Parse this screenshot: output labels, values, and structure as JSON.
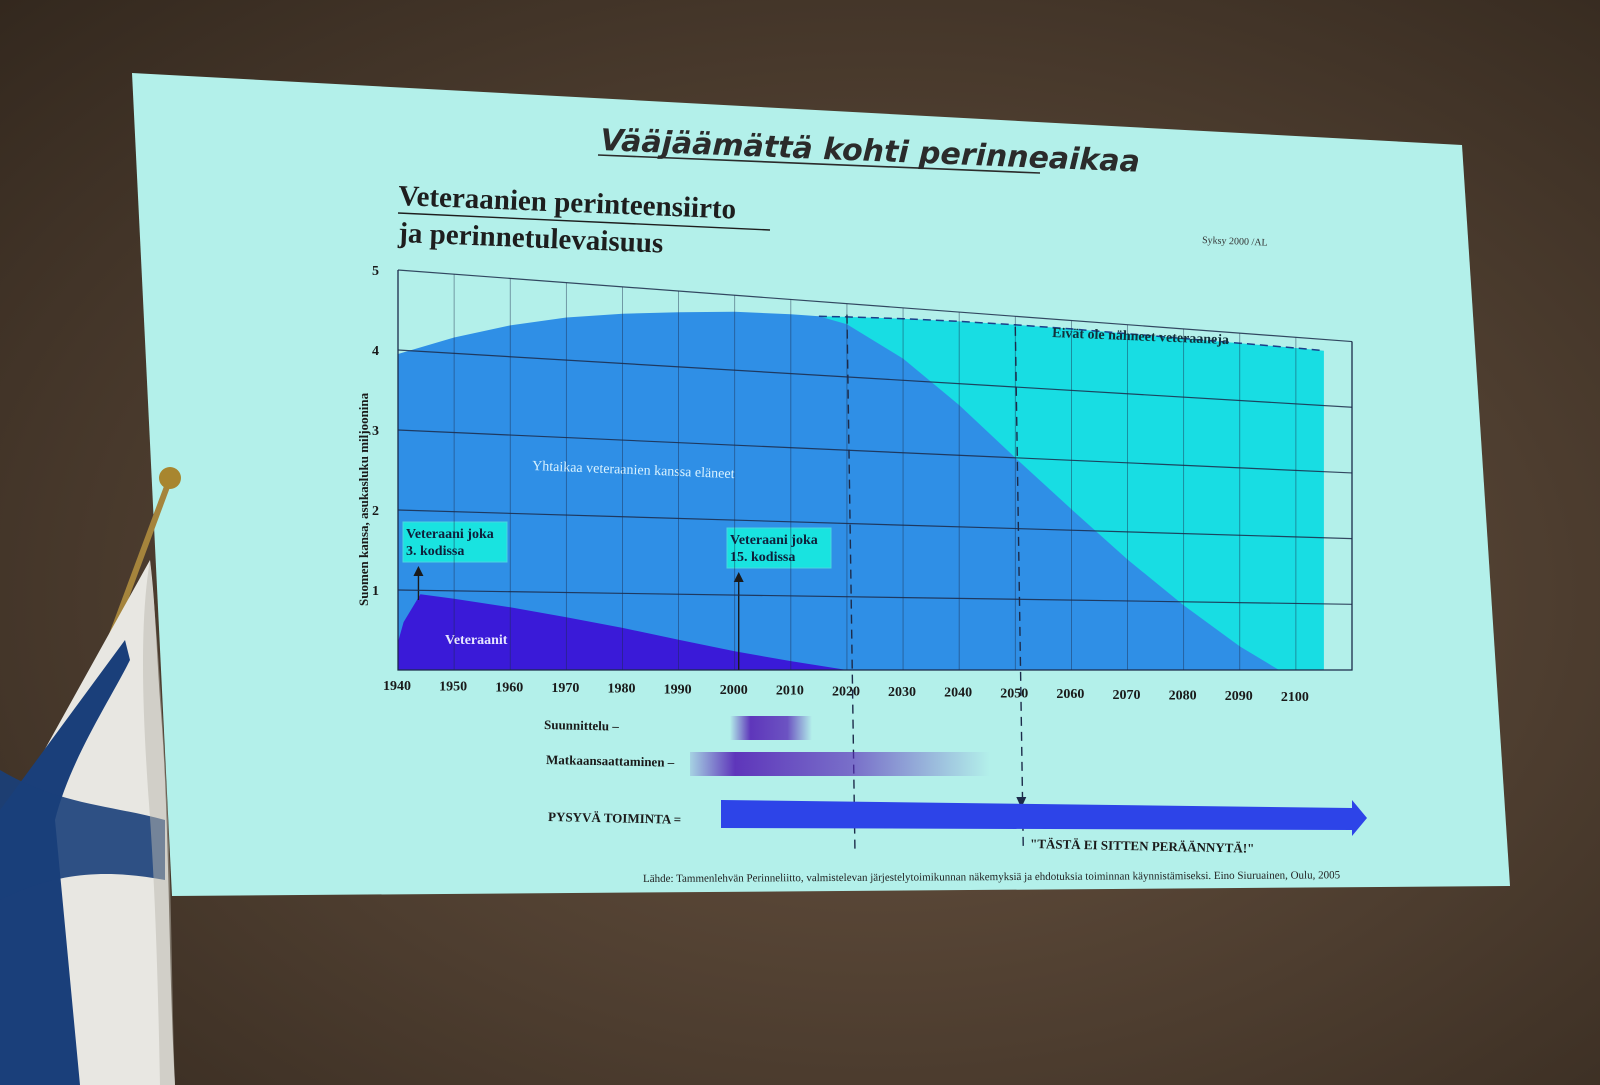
{
  "slide": {
    "title": "Vääjäämättä kohti perinneaikaa",
    "subtitle_line1": "Veteraanien perinteensiirto",
    "subtitle_line2": "ja perinnetulevaisuus",
    "stamp": "Syksy 2000 /AL",
    "source": "Lähde: Tammenlehvän Perinneliitto, valmistelevan järjestelytoimikunnan näkemyksiä ja ehdotuksia toiminnan käynnistämiseksi. Eino Siuruainen, Oulu, 2005",
    "quote": "\"TÄSTÄ EI SITTEN PERÄÄNNYTÄ!\""
  },
  "colors": {
    "slide_bg": "#b3f0ea",
    "veterans": "#3a1ad8",
    "coexisted": "#2f8fe6",
    "not_seen": "#18dde3",
    "permanent_arrow": "#2d44e8",
    "gradient_bar": "#5a2cb8",
    "callout_box": "#19e3e0"
  },
  "rows": {
    "planning": "Suunnittelu –",
    "launching": "Matkaansaattaminen –",
    "permanent": "PYSYVÄ TOIMINTA ="
  },
  "chart_data": {
    "type": "area",
    "title": "Veteraanien perinteensiirto ja perinnetulevaisuus",
    "xlabel": "",
    "ylabel": "Suomen kansa, asukasluku miljoonina",
    "xlim": [
      1940,
      2110
    ],
    "ylim": [
      0,
      5
    ],
    "x_ticks": [
      "1940",
      "1950",
      "1960",
      "1970",
      "1980",
      "1990",
      "2000",
      "2010",
      "2020",
      "2030",
      "2040",
      "2050",
      "2060",
      "2070",
      "2080",
      "2090",
      "2100"
    ],
    "y_ticks": [
      "1",
      "2",
      "3",
      "4",
      "5"
    ],
    "grid": true,
    "area_labels": {
      "veterans": "Veteraanit",
      "coexisted": "Yhtaikaa veteraanien kanssa eläneet",
      "not_seen": "Eivät ole nähneet veteraaneja"
    },
    "series": [
      {
        "name": "Veteraanit",
        "x": [
          1940,
          1941,
          1944,
          1950,
          1960,
          1970,
          1980,
          1990,
          2000,
          2010,
          2020
        ],
        "y": [
          0.35,
          0.6,
          0.95,
          0.9,
          0.8,
          0.68,
          0.55,
          0.4,
          0.25,
          0.12,
          0.0
        ]
      },
      {
        "name": "Yhtaikaa veteraanien kanssa eläneet",
        "x": [
          1940,
          1950,
          1960,
          1970,
          1980,
          1990,
          2000,
          2010,
          2015,
          2020,
          2030,
          2040,
          2050,
          2060,
          2070,
          2080,
          2090,
          2097
        ],
        "y": [
          3.95,
          4.2,
          4.4,
          4.55,
          4.65,
          4.72,
          4.78,
          4.8,
          4.8,
          4.72,
          4.3,
          3.7,
          3.0,
          2.3,
          1.6,
          0.95,
          0.35,
          0.0
        ]
      },
      {
        "name": "Eivät ole nähneet veteraaneja",
        "x": [
          2015,
          2020,
          2030,
          2040,
          2050,
          2060,
          2070,
          2080,
          2090,
          2100,
          2105
        ],
        "y": [
          4.8,
          4.82,
          4.85,
          4.87,
          4.88,
          4.88,
          4.87,
          4.86,
          4.85,
          4.84,
          4.83
        ]
      }
    ],
    "annotations": [
      {
        "text_line1": "Veteraani joka",
        "text_line2": "3. kodissa",
        "x": 1944
      },
      {
        "text_line1": "Veteraani joka",
        "text_line2": "15. kodissa",
        "x": 2000
      }
    ],
    "markers": [
      2020,
      2050
    ]
  }
}
